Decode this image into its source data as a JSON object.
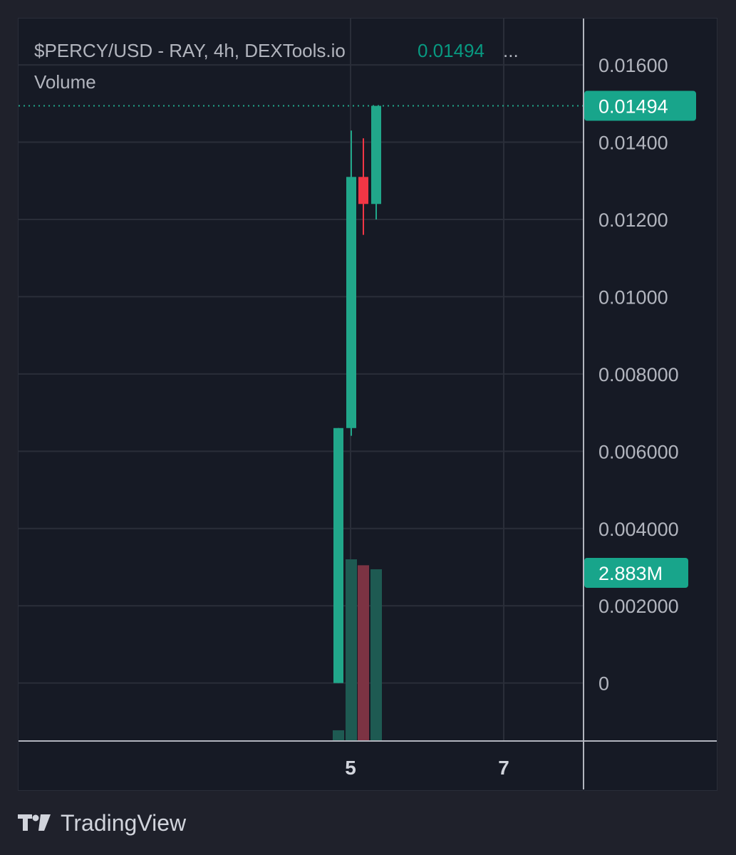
{
  "legend": {
    "title": "$PERCY/USD - RAY, 4h, DEXTools.io",
    "last_price": "0.01494",
    "ellipsis": "...",
    "volume_label": "Volume"
  },
  "colors": {
    "background": "#161a25",
    "up": "#21a78a",
    "down": "#f23645",
    "volume_up": "#1e5a52",
    "volume_down": "#7c3343",
    "grid": "#2a2e39",
    "text": "#b2b5be",
    "tag": "#18a58b"
  },
  "price_tag": "0.01494",
  "volume_tag": "2.883M",
  "brand": {
    "name": "TradingView",
    "logo_icon": "tradingview-logo-icon"
  },
  "chart_data": {
    "type": "candlestick",
    "title": "$PERCY/USD - RAY, 4h, DEXTools.io",
    "x_ticks": [
      "5",
      "7"
    ],
    "y_ticks": [
      "0.01600",
      "0.01400",
      "0.01200",
      "0.01000",
      "0.008000",
      "0.006000",
      "0.004000",
      "0.002000",
      "0"
    ],
    "ylim": [
      -0.0015,
      0.0172
    ],
    "grid": true,
    "last_price": 0.01494,
    "candles": [
      {
        "open": 0.0,
        "high": 0.0066,
        "low": 0.0,
        "close": 0.0066
      },
      {
        "open": 0.0066,
        "high": 0.0143,
        "low": 0.0064,
        "close": 0.0131
      },
      {
        "open": 0.0131,
        "high": 0.0141,
        "low": 0.0116,
        "close": 0.0124
      },
      {
        "open": 0.0124,
        "high": 0.0149,
        "low": 0.012,
        "close": 0.01494
      }
    ],
    "volume": {
      "last_label": "2.883M",
      "values": [
        0.18,
        3.05,
        2.95,
        2.883
      ],
      "direction": [
        "up",
        "up",
        "down",
        "up"
      ],
      "max": 3.05
    }
  }
}
